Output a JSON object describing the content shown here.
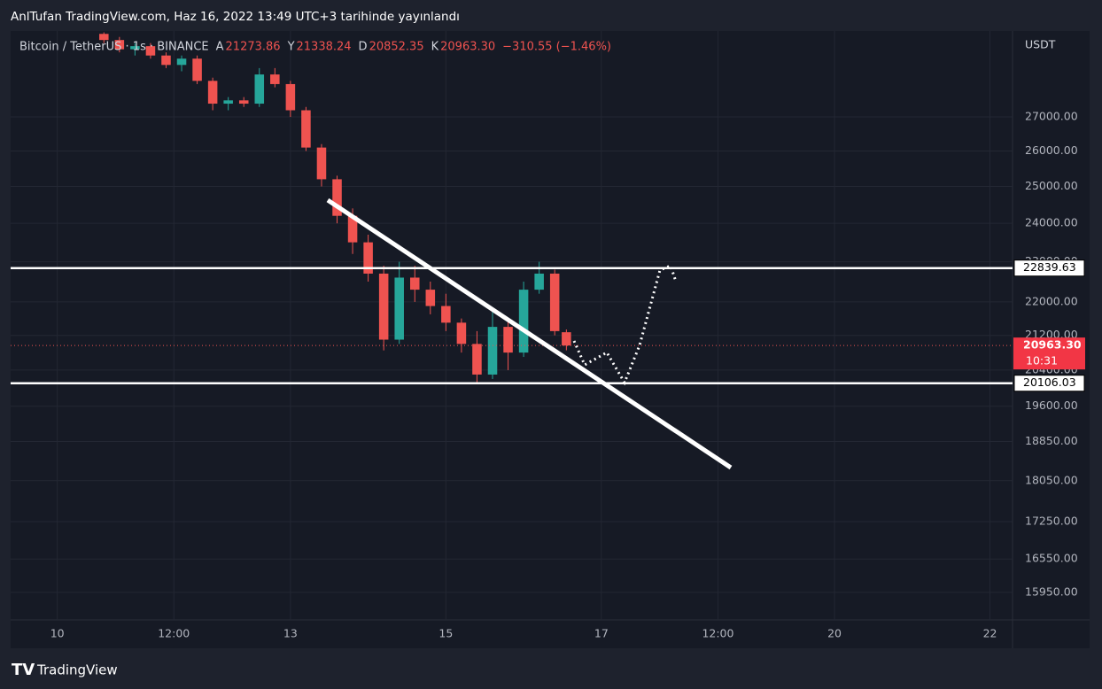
{
  "header": {
    "title": "AnlTufan TradingView.com, Haz 16, 2022 13:49 UTC+3 tarihinde yayınlandı"
  },
  "chart_data": {
    "type": "candlestick",
    "symbol": "Bitcoin / TetherUS · 1s · BINANCE",
    "legend": [
      {
        "key": "A",
        "value": "21273.86"
      },
      {
        "key": "Y",
        "value": "21338.24"
      },
      {
        "key": "D",
        "value": "20852.35"
      },
      {
        "key": "K",
        "value": "20963.30"
      }
    ],
    "change": "−310.55 (−1.46%)",
    "currency": "USDT",
    "log_scale": true,
    "grid": true,
    "up_color": "#26a69a",
    "down_color": "#ef5350",
    "xlim": [
      9.4,
      22.29
    ],
    "ylim": [
      15471,
      29695
    ],
    "xticks": [
      {
        "value": 10,
        "label": "10"
      },
      {
        "value": 11.5,
        "label": "12:00"
      },
      {
        "value": 13,
        "label": "13"
      },
      {
        "value": 15,
        "label": "15"
      },
      {
        "value": 17,
        "label": "17"
      },
      {
        "value": 18.5,
        "label": "12:00"
      },
      {
        "value": 20,
        "label": "20"
      },
      {
        "value": 22,
        "label": "22"
      }
    ],
    "yticks": [
      {
        "value": 27000,
        "label": "27000.00"
      },
      {
        "value": 26000,
        "label": "26000.00"
      },
      {
        "value": 25000,
        "label": "25000.00"
      },
      {
        "value": 24000,
        "label": "24000.00"
      },
      {
        "value": 23000,
        "label": "23000.00"
      },
      {
        "value": 22000,
        "label": "22000.00"
      },
      {
        "value": 21200,
        "label": "21200.00"
      },
      {
        "value": 20400,
        "label": "20400.00"
      },
      {
        "value": 19600,
        "label": "19600.00"
      },
      {
        "value": 18850,
        "label": "18850.00"
      },
      {
        "value": 18050,
        "label": "18050.00"
      },
      {
        "value": 17250,
        "label": "17250.00"
      },
      {
        "value": 16550,
        "label": "16550.00"
      },
      {
        "value": 15950,
        "label": "15950.00"
      }
    ],
    "x": [
      10.6,
      10.8,
      11.0,
      11.2,
      11.4,
      11.6,
      11.8,
      12.0,
      12.2,
      12.4,
      12.6,
      12.8,
      13.0,
      13.2,
      13.4,
      13.6,
      13.8,
      14.0,
      14.2,
      14.4,
      14.6,
      14.8,
      15.0,
      15.2,
      15.4,
      15.6,
      15.8,
      16.0,
      16.2,
      16.4,
      16.55
    ],
    "open": [
      29600,
      29400,
      29100,
      29200,
      28900,
      28600,
      28800,
      28100,
      27400,
      27500,
      27400,
      28300,
      28000,
      27200,
      26100,
      25200,
      24200,
      23500,
      22700,
      21100,
      22600,
      22300,
      21900,
      21500,
      21000,
      20300,
      21400,
      20800,
      22300,
      22700,
      21273.86
    ],
    "high": [
      29650,
      29500,
      29300,
      29300,
      29000,
      28900,
      28900,
      28200,
      27600,
      27600,
      28500,
      28500,
      28100,
      27300,
      26200,
      25300,
      24400,
      23700,
      22900,
      23000,
      22900,
      22500,
      22200,
      21600,
      21300,
      21800,
      21600,
      22500,
      23000,
      22800,
      21338.24
    ],
    "low": [
      29300,
      29000,
      28900,
      28800,
      28500,
      28400,
      28000,
      27200,
      27200,
      27300,
      27300,
      27900,
      27000,
      26000,
      25000,
      24000,
      23200,
      22500,
      20850,
      21000,
      22000,
      21700,
      21300,
      20800,
      20100,
      20200,
      20400,
      20700,
      22200,
      21200,
      20852.35
    ],
    "close": [
      29400,
      29100,
      29200,
      28900,
      28600,
      28800,
      28100,
      27400,
      27500,
      27400,
      28300,
      28000,
      27200,
      26100,
      25200,
      24200,
      23500,
      22700,
      21100,
      22600,
      22300,
      21900,
      21500,
      21000,
      20300,
      21400,
      20800,
      22300,
      22700,
      21300,
      20963.3
    ],
    "hlines": [
      22839.63,
      20106.03
    ],
    "last_price": {
      "value": 20963.3,
      "label": "20963.30",
      "countdown": "10:31"
    }
  },
  "footer": {
    "brand": "TradingView"
  }
}
